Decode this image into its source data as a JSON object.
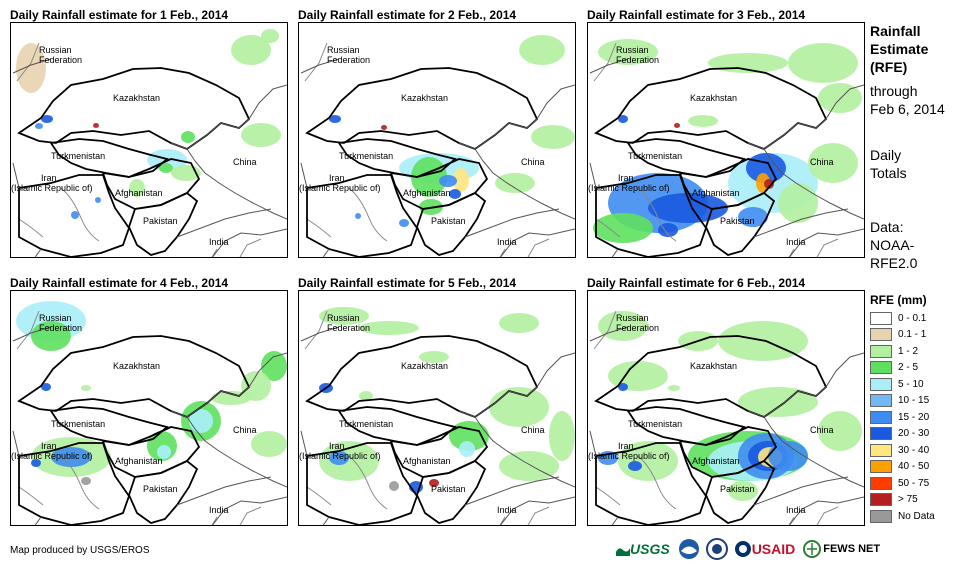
{
  "panels": [
    {
      "title": "Daily Rainfall estimate for 1 Feb., 2014"
    },
    {
      "title": "Daily Rainfall estimate for 2 Feb., 2014"
    },
    {
      "title": "Daily Rainfall estimate for 3 Feb., 2014"
    },
    {
      "title": "Daily Rainfall estimate for 4 Feb., 2014"
    },
    {
      "title": "Daily Rainfall estimate for 5 Feb., 2014"
    },
    {
      "title": "Daily Rainfall estimate for 6 Feb., 2014"
    }
  ],
  "map_labels": {
    "russia_1": "Russian",
    "russia_2": "Federation",
    "kazakhstan": "Kazakhstan",
    "turkmenistan": "Turkmenistan",
    "iran_1": "Iran",
    "iran_2": "(Islamic Republic of)",
    "afghanistan": "Afghanistan",
    "pakistan": "Pakistan",
    "china": "China",
    "india": "India"
  },
  "side_info": {
    "title_1": "Rainfall",
    "title_2": "Estimate",
    "title_3": "(RFE)",
    "through": "through",
    "date": "Feb 6, 2014",
    "daily": "Daily",
    "totals": "Totals",
    "data_label": "Data:",
    "source_1": "NOAA-",
    "source_2": "RFE2.0"
  },
  "legend": {
    "title": "RFE (mm)",
    "items": [
      {
        "label": "0 - 0.1",
        "color": "#ffffff"
      },
      {
        "label": "0.1 - 1",
        "color": "#e8d3b0"
      },
      {
        "label": "1 - 2",
        "color": "#b2f0a0"
      },
      {
        "label": "2 - 5",
        "color": "#5ee05e"
      },
      {
        "label": "5 - 10",
        "color": "#aaeef8"
      },
      {
        "label": "10 - 15",
        "color": "#73b8f5"
      },
      {
        "label": "15 - 20",
        "color": "#3f8cf0"
      },
      {
        "label": "20 - 30",
        "color": "#1a5ae0"
      },
      {
        "label": "30 - 40",
        "color": "#ffe680"
      },
      {
        "label": "40 - 50",
        "color": "#ffa000"
      },
      {
        "label": "50 - 75",
        "color": "#ff3c00"
      },
      {
        "label": "> 75",
        "color": "#b41e1e"
      },
      {
        "label": "No Data",
        "color": "#999999"
      }
    ]
  },
  "credit": "Map produced by USGS/EROS",
  "logos": {
    "usgs": "USGS",
    "usaid": "USAID",
    "fewsnet": "FEWS NET"
  }
}
